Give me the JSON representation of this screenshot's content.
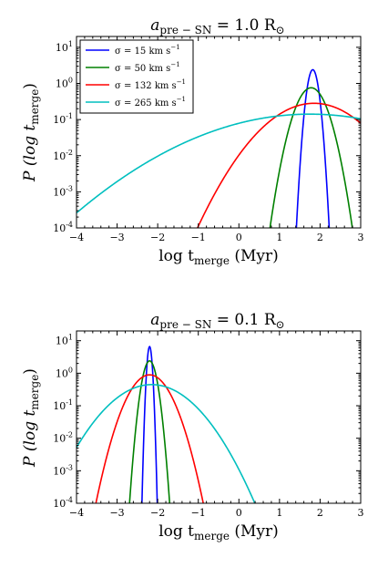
{
  "chart_data": [
    {
      "type": "line",
      "title": "a_pre-SN = 1.0 R⊙",
      "title_main": "a",
      "title_sub": "pre − SN",
      "title_rest": " = 1.0 R",
      "title_sym": "⊙",
      "xlabel": "log t_merge (Myr)",
      "xlabel_main": "log t",
      "xlabel_sub": "merge",
      "xlabel_rest": " (Myr)",
      "ylabel": "P (log t_merge)",
      "ylabel_main": "P (log t",
      "ylabel_sub": "merge",
      "ylabel_rest": ")",
      "xlim": [
        -4,
        3
      ],
      "ylim_log10": [
        -4,
        1.3
      ],
      "y_scale": "log",
      "xticks": [
        "−4",
        "−3",
        "−2",
        "−1",
        "0",
        "1",
        "2",
        "3"
      ],
      "yticks": [
        {
          "base": "10",
          "exp": "-4"
        },
        {
          "base": "10",
          "exp": "-3"
        },
        {
          "base": "10",
          "exp": "-2"
        },
        {
          "base": "10",
          "exp": "-1"
        },
        {
          "base": "10",
          "exp": "0"
        },
        {
          "base": "10",
          "exp": "1"
        }
      ],
      "legend_position": "top-left",
      "series": [
        {
          "name": "σ = 15 km s⁻¹",
          "name_main": "σ = 15 km s",
          "name_exp": "−1",
          "color": "#0000ff",
          "peak_x": 1.82,
          "peak_log10": 0.38,
          "width": 0.09
        },
        {
          "name": "σ = 50 km s⁻¹",
          "name_main": "σ = 50 km s",
          "name_exp": "−1",
          "color": "#008000",
          "peak_x": 1.78,
          "peak_log10": -0.12,
          "width": 0.24
        },
        {
          "name": "σ = 132 km s⁻¹",
          "name_main": "σ = 132 km s",
          "name_exp": "−1",
          "color": "#ff0000",
          "peak_x": 1.85,
          "peak_log10": -0.55,
          "width": 0.72
        },
        {
          "name": "σ = 265 km s⁻¹",
          "name_main": "σ = 265 km s",
          "name_exp": "−1",
          "color": "#00bfbf",
          "peak_x": 1.75,
          "peak_log10": -0.85,
          "width": 1.62
        }
      ]
    },
    {
      "type": "line",
      "title": "a_pre-SN = 0.1 R⊙",
      "title_main": "a",
      "title_sub": "pre − SN",
      "title_rest": " = 0.1 R",
      "title_sym": "⊙",
      "xlabel": "log t_merge (Myr)",
      "xlabel_main": "log t",
      "xlabel_sub": "merge",
      "xlabel_rest": " (Myr)",
      "ylabel": "P (log t_merge)",
      "ylabel_main": "P (log t",
      "ylabel_sub": "merge",
      "ylabel_rest": ")",
      "xlim": [
        -4,
        3
      ],
      "ylim_log10": [
        -4,
        1.3
      ],
      "y_scale": "log",
      "xticks": [
        "−4",
        "−3",
        "−2",
        "−1",
        "0",
        "1",
        "2",
        "3"
      ],
      "yticks": [
        {
          "base": "10",
          "exp": "-4"
        },
        {
          "base": "10",
          "exp": "-3"
        },
        {
          "base": "10",
          "exp": "-2"
        },
        {
          "base": "10",
          "exp": "-1"
        },
        {
          "base": "10",
          "exp": "0"
        },
        {
          "base": "10",
          "exp": "1"
        }
      ],
      "series": [
        {
          "name": "σ = 15 km s⁻¹",
          "color": "#0000ff",
          "peak_x": -2.2,
          "peak_log10": 0.82,
          "width": 0.04
        },
        {
          "name": "σ = 50 km s⁻¹",
          "color": "#008000",
          "peak_x": -2.2,
          "peak_log10": 0.38,
          "width": 0.11
        },
        {
          "name": "σ = 132 km s⁻¹",
          "color": "#ff0000",
          "peak_x": -2.2,
          "peak_log10": -0.05,
          "width": 0.31
        },
        {
          "name": "σ = 265 km s⁻¹",
          "color": "#00bfbf",
          "peak_x": -2.15,
          "peak_log10": -0.35,
          "width": 0.62
        }
      ]
    }
  ]
}
